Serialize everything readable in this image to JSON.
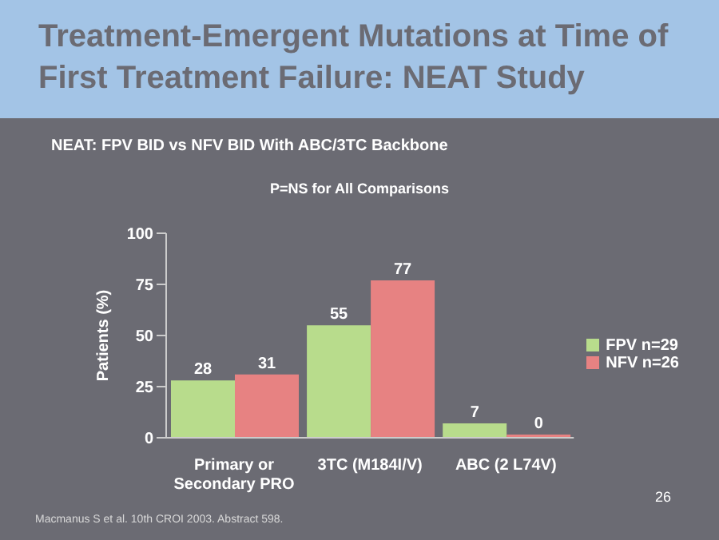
{
  "chart_data": {
    "type": "bar",
    "title": "Treatment-Emergent Mutations at Time of First Treatment Failure: NEAT Study",
    "subtitle": "NEAT: FPV BID vs NFV BID With ABC/3TC Backbone",
    "annotations": [
      "P=NS for All Comparisons",
      "Macmanus S et al. 10th CROI 2003. Abstract 598.",
      "26"
    ],
    "categories": [
      "Primary or Secondary PRO",
      "3TC (M184I/V)",
      "ABC (2 L74V)"
    ],
    "series": [
      {
        "name": "FPV n=29",
        "color": "#b8dc8c",
        "values": [
          28,
          55,
          7
        ]
      },
      {
        "name": "NFV n=26",
        "color": "#e78282",
        "values": [
          31,
          77,
          0
        ]
      }
    ],
    "ylabel": "Patients (%)",
    "ylim": [
      0,
      100
    ],
    "yticks": [
      0,
      25,
      50,
      75,
      100
    ],
    "data_labels": true,
    "legend": "right",
    "grid": false
  }
}
